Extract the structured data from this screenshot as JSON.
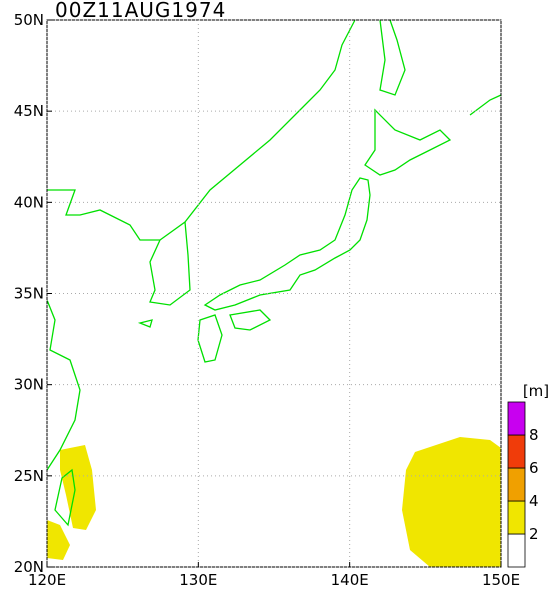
{
  "map": {
    "title": "00Z11AUG1974",
    "lon_ticks": [
      {
        "value": 120,
        "label": "120E"
      },
      {
        "value": 130,
        "label": "130E"
      },
      {
        "value": 140,
        "label": "140E"
      },
      {
        "value": 150,
        "label": "150E"
      }
    ],
    "lat_ticks": [
      {
        "value": 20,
        "label": "20N"
      },
      {
        "value": 25,
        "label": "25N"
      },
      {
        "value": 30,
        "label": "30N"
      },
      {
        "value": 35,
        "label": "35N"
      },
      {
        "value": 40,
        "label": "40N"
      },
      {
        "value": 45,
        "label": "45N"
      },
      {
        "value": 50,
        "label": "50N"
      }
    ],
    "lonlim": [
      120,
      150
    ],
    "latlim": [
      20,
      50
    ],
    "colorbar": {
      "unit": "[m]",
      "levels": [
        2,
        4,
        6,
        8
      ],
      "colors": [
        "#ffffff",
        "#f0e600",
        "#f0a000",
        "#f03c0a",
        "#c800f0"
      ]
    }
  }
}
